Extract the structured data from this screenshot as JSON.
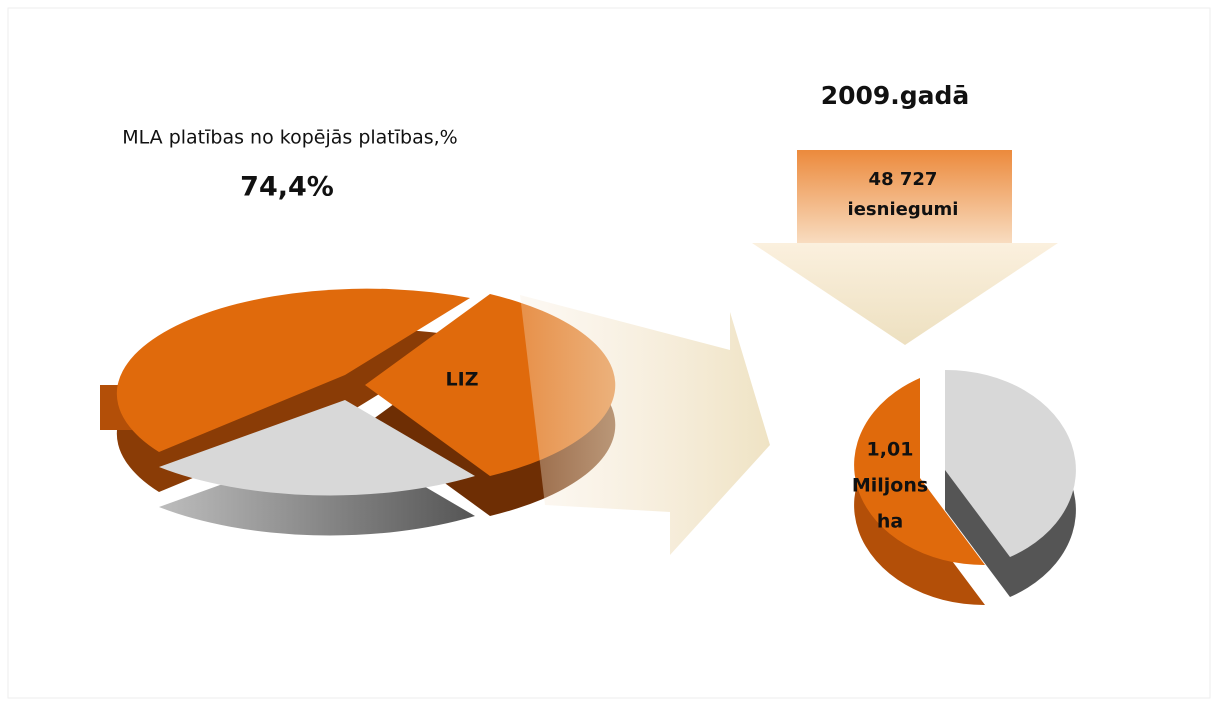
{
  "left": {
    "caption": "MLA platības no kopējās platības,%",
    "percent": "74,4%",
    "slice_label": "LIZ"
  },
  "right": {
    "year": "2009.gadā",
    "arrow_text": [
      "48 727",
      "iesniegumi"
    ],
    "pie_text": [
      "1,01",
      "Miljons",
      "ha"
    ]
  }
}
